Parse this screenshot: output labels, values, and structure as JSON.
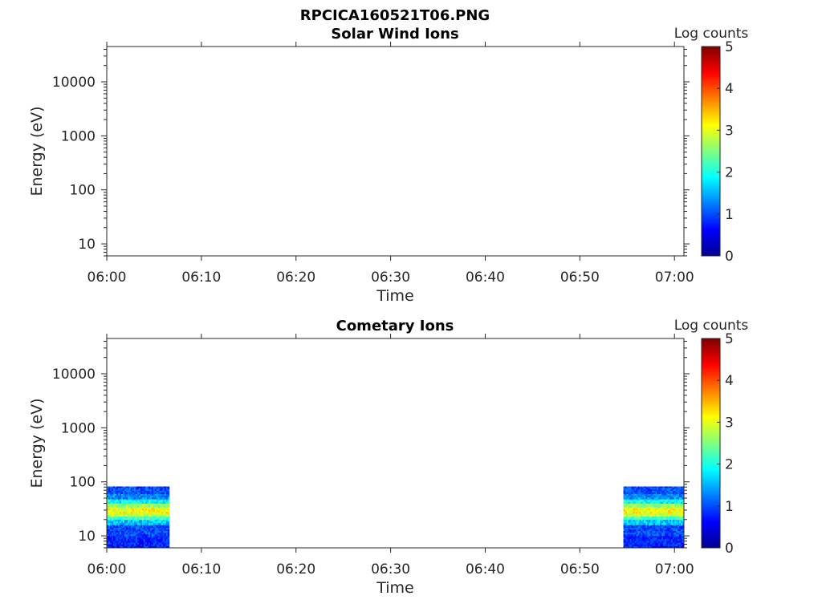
{
  "figure_title": "RPCICA160521T06.PNG",
  "colors": {
    "axis": "#262626",
    "background": "#ffffff",
    "colormap": "jet"
  },
  "chart_data": [
    {
      "type": "heatmap",
      "title": "Solar Wind Ions",
      "xlabel": "Time",
      "ylabel": "Energy (eV)",
      "x_tick_labels": [
        "06:00",
        "06:10",
        "06:20",
        "06:30",
        "06:40",
        "06:50",
        "07:00"
      ],
      "x_ticks_minutes": [
        0,
        10,
        20,
        30,
        40,
        50,
        60
      ],
      "xlim_minutes": [
        0,
        61
      ],
      "y_scale": "log",
      "ylim": [
        6,
        45000
      ],
      "y_ticks": [
        10,
        100,
        1000,
        10000
      ],
      "y_tick_labels": [
        "10",
        "100",
        "1000",
        "10000"
      ],
      "colorbar": {
        "label": "Log counts",
        "range": [
          0,
          5
        ],
        "tick_labels": [
          "0",
          "1",
          "2",
          "3",
          "4",
          "5"
        ]
      },
      "data_blocks": []
    },
    {
      "type": "heatmap",
      "title": "Cometary Ions",
      "xlabel": "Time",
      "ylabel": "Energy (eV)",
      "x_tick_labels": [
        "06:00",
        "06:10",
        "06:20",
        "06:30",
        "06:40",
        "06:50",
        "07:00"
      ],
      "x_ticks_minutes": [
        0,
        10,
        20,
        30,
        40,
        50,
        60
      ],
      "xlim_minutes": [
        0,
        61
      ],
      "y_scale": "log",
      "ylim": [
        6,
        45000
      ],
      "y_ticks": [
        10,
        100,
        1000,
        10000
      ],
      "y_tick_labels": [
        "10",
        "100",
        "1000",
        "10000"
      ],
      "colorbar": {
        "label": "Log counts",
        "range": [
          0,
          5
        ],
        "tick_labels": [
          "0",
          "1",
          "2",
          "3",
          "4",
          "5"
        ]
      },
      "data_blocks": [
        {
          "t_start_min": 0,
          "t_end_min": 6.6,
          "energy_bins": [
            {
              "e_lo": 6,
              "e_hi": 10,
              "log_counts": 0.8
            },
            {
              "e_lo": 10,
              "e_hi": 16,
              "log_counts": 1.0
            },
            {
              "e_lo": 16,
              "e_hi": 20,
              "log_counts": 1.6
            },
            {
              "e_lo": 20,
              "e_hi": 23,
              "log_counts": 2.2
            },
            {
              "e_lo": 23,
              "e_hi": 26,
              "log_counts": 2.8
            },
            {
              "e_lo": 26,
              "e_hi": 34,
              "log_counts": 3.1
            },
            {
              "e_lo": 34,
              "e_hi": 40,
              "log_counts": 2.6
            },
            {
              "e_lo": 40,
              "e_hi": 48,
              "log_counts": 1.9
            },
            {
              "e_lo": 48,
              "e_hi": 60,
              "log_counts": 1.3
            },
            {
              "e_lo": 60,
              "e_hi": 82,
              "log_counts": 1.0
            }
          ]
        },
        {
          "t_start_min": 54.6,
          "t_end_min": 61,
          "energy_bins": [
            {
              "e_lo": 6,
              "e_hi": 10,
              "log_counts": 0.8
            },
            {
              "e_lo": 10,
              "e_hi": 16,
              "log_counts": 1.0
            },
            {
              "e_lo": 16,
              "e_hi": 20,
              "log_counts": 1.6
            },
            {
              "e_lo": 20,
              "e_hi": 23,
              "log_counts": 2.2
            },
            {
              "e_lo": 23,
              "e_hi": 26,
              "log_counts": 2.8
            },
            {
              "e_lo": 26,
              "e_hi": 34,
              "log_counts": 3.1
            },
            {
              "e_lo": 34,
              "e_hi": 40,
              "log_counts": 2.6
            },
            {
              "e_lo": 40,
              "e_hi": 48,
              "log_counts": 1.9
            },
            {
              "e_lo": 48,
              "e_hi": 60,
              "log_counts": 1.3
            },
            {
              "e_lo": 60,
              "e_hi": 82,
              "log_counts": 1.0
            }
          ]
        }
      ]
    }
  ]
}
